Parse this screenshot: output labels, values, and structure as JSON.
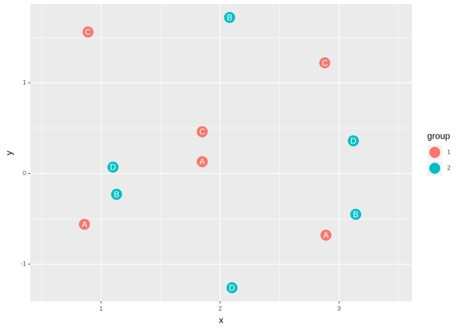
{
  "chart_data": {
    "type": "scatter",
    "xlabel": "x",
    "ylabel": "y",
    "legend_title": "group",
    "legend_position": "right",
    "xlim": [
      0.405,
      3.613
    ],
    "ylim": [
      -1.41,
      1.867
    ],
    "xticks": [
      1,
      2,
      3
    ],
    "yticks": [
      -1,
      0,
      1
    ],
    "grid": true,
    "series": [
      {
        "name": "1",
        "color": "#F8766D",
        "x": [
          0.89,
          2.88,
          1.85,
          1.85,
          0.86,
          2.89
        ],
        "values": [
          1.56,
          1.22,
          0.46,
          0.13,
          -0.56,
          -0.68
        ],
        "labels": [
          "C",
          "C",
          "C",
          "A",
          "A",
          "A"
        ]
      },
      {
        "name": "2",
        "color": "#00BFC4",
        "x": [
          2.08,
          3.12,
          1.1,
          1.13,
          3.14,
          2.1
        ],
        "values": [
          1.72,
          0.36,
          0.07,
          -0.23,
          -0.45,
          -1.26
        ],
        "labels": [
          "B",
          "D",
          "D",
          "B",
          "B",
          "D"
        ]
      }
    ]
  }
}
